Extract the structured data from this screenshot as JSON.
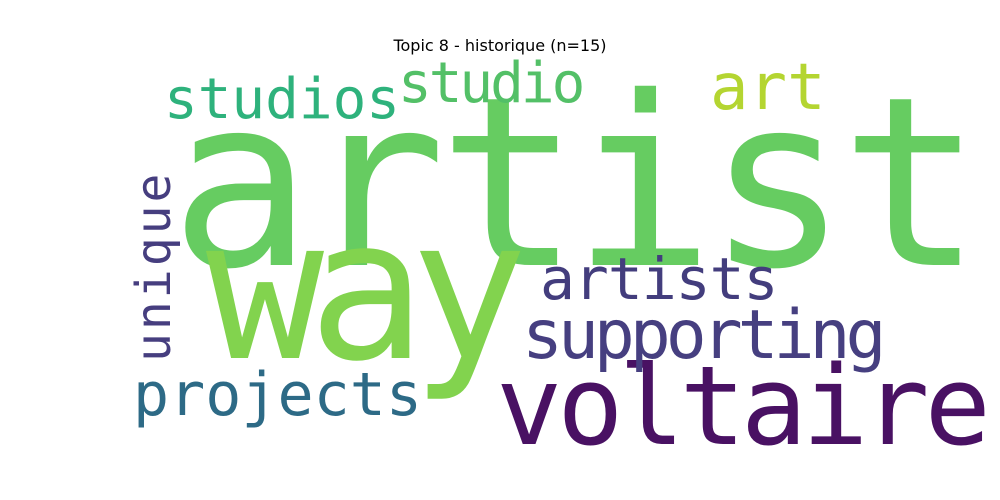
{
  "title": "Topic 8 - historique (n=15)",
  "words": [
    {
      "id": "artist",
      "text": "artist",
      "color": "#66cc61"
    },
    {
      "id": "way",
      "text": "way",
      "color": "#82d34e"
    },
    {
      "id": "voltaire",
      "text": "voltaire",
      "color": "#491163"
    },
    {
      "id": "supporting",
      "text": "supporting",
      "color": "#463f80"
    },
    {
      "id": "artists",
      "text": "artists",
      "color": "#433d7d"
    },
    {
      "id": "projects",
      "text": "projects",
      "color": "#2d6a86"
    },
    {
      "id": "studios",
      "text": "studios",
      "color": "#2eb27c"
    },
    {
      "id": "studio",
      "text": "studio",
      "color": "#53c067"
    },
    {
      "id": "art",
      "text": "art",
      "color": "#b4d531"
    },
    {
      "id": "unique",
      "text": "unique",
      "color": "#463e7f"
    }
  ]
}
